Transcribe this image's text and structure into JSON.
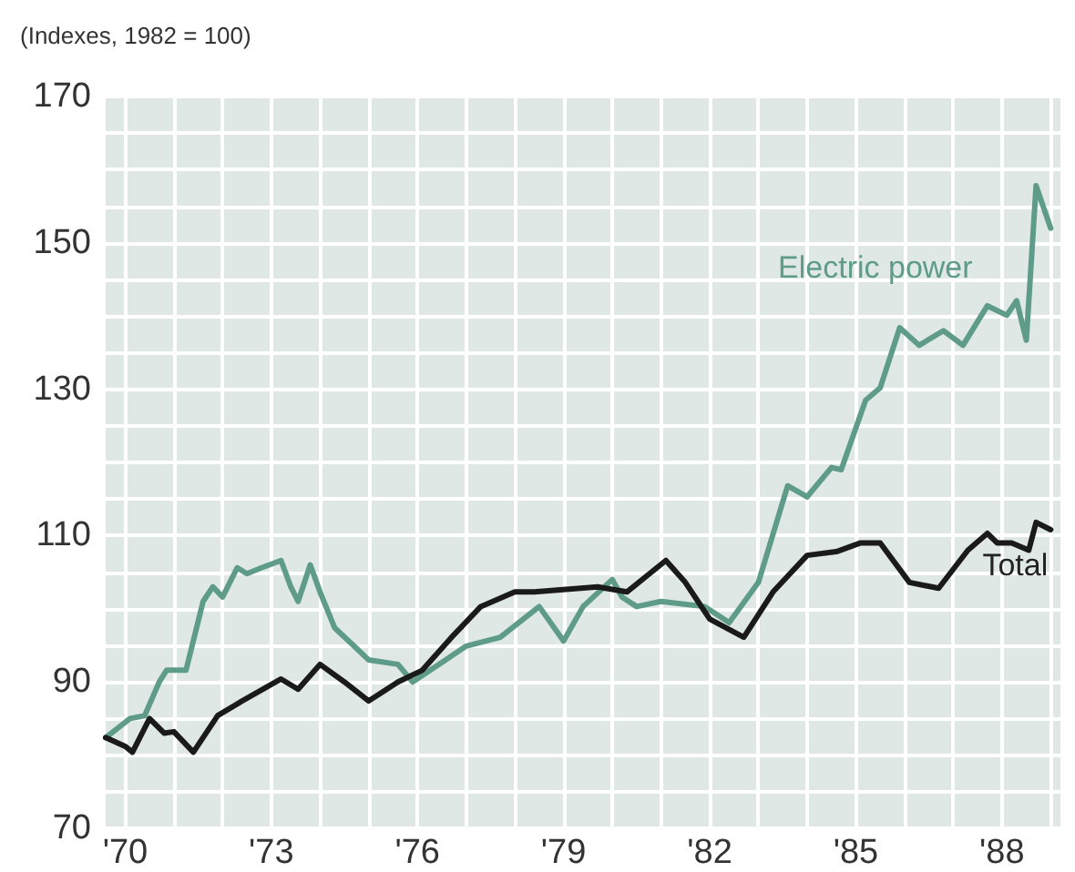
{
  "chart_data": {
    "type": "line",
    "title": "(Indexes, 1982 = 100)",
    "xlim": [
      1969.6,
      1989.2
    ],
    "xticks": [
      {
        "value": 1970,
        "label": "'70"
      },
      {
        "value": 1971,
        "label": null
      },
      {
        "value": 1972,
        "label": null
      },
      {
        "value": 1973,
        "label": "'73"
      },
      {
        "value": 1974,
        "label": null
      },
      {
        "value": 1975,
        "label": null
      },
      {
        "value": 1976,
        "label": "'76"
      },
      {
        "value": 1977,
        "label": null
      },
      {
        "value": 1978,
        "label": null
      },
      {
        "value": 1979,
        "label": "'79"
      },
      {
        "value": 1980,
        "label": null
      },
      {
        "value": 1981,
        "label": null
      },
      {
        "value": 1982,
        "label": "'82"
      },
      {
        "value": 1983,
        "label": null
      },
      {
        "value": 1984,
        "label": null
      },
      {
        "value": 1985,
        "label": "'85"
      },
      {
        "value": 1986,
        "label": null
      },
      {
        "value": 1987,
        "label": null
      },
      {
        "value": 1988,
        "label": "'88"
      },
      {
        "value": 1989,
        "label": null
      }
    ],
    "ylim": [
      70,
      170
    ],
    "yticks": [
      70,
      {
        "value": 75,
        "label": null
      },
      {
        "value": 80,
        "label": null
      },
      {
        "value": 85,
        "label": null
      },
      90,
      {
        "value": 95,
        "label": null
      },
      {
        "value": 100,
        "label": null
      },
      {
        "value": 105,
        "label": null
      },
      110,
      {
        "value": 115,
        "label": null
      },
      {
        "value": 120,
        "label": null
      },
      {
        "value": 125,
        "label": null
      },
      130,
      {
        "value": 135,
        "label": null
      },
      {
        "value": 140,
        "label": null
      },
      {
        "value": 145,
        "label": null
      },
      150,
      {
        "value": 155,
        "label": null
      },
      {
        "value": 160,
        "label": null
      },
      {
        "value": 165,
        "label": null
      },
      170
    ],
    "grid": true,
    "legend": false,
    "marker": "none",
    "line_style": "solid",
    "series": [
      {
        "name": "Electric power",
        "color": "#5e9c89",
        "x": [
          1969.6,
          1970.1,
          1970.4,
          1970.7,
          1970.85,
          1971.0,
          1971.25,
          1971.6,
          1971.8,
          1972.0,
          1972.3,
          1972.5,
          1972.8,
          1973.2,
          1973.4,
          1973.55,
          1973.8,
          1974.0,
          1974.3,
          1974.7,
          1975.0,
          1975.6,
          1975.9,
          1976.6,
          1977.0,
          1977.7,
          1978.5,
          1979.0,
          1979.4,
          1980.0,
          1980.2,
          1980.5,
          1981.0,
          1981.9,
          1982.4,
          1983.0,
          1983.6,
          1984.0,
          1984.5,
          1984.7,
          1985.2,
          1985.5,
          1985.9,
          1986.3,
          1986.8,
          1987.2,
          1987.7,
          1988.1,
          1988.3,
          1988.5,
          1988.7,
          1989.0
        ],
        "values": [
          82.4,
          85,
          85.4,
          90,
          91.6,
          91.6,
          91.6,
          101,
          103,
          101.6,
          105.6,
          104.8,
          105.6,
          106.6,
          103,
          101,
          106,
          102.3,
          97.4,
          94.9,
          93,
          92.4,
          90,
          93.1,
          94.9,
          96.1,
          100.3,
          95.6,
          100.3,
          104,
          101.6,
          100.3,
          101,
          100.3,
          98.1,
          103.6,
          116.8,
          115.3,
          119.3,
          119,
          128.5,
          130.2,
          138.4,
          136,
          138,
          136,
          141.4,
          140.1,
          142.1,
          136.7,
          157.8,
          152
        ]
      },
      {
        "name": "Total",
        "color": "#1a1a1a",
        "x": [
          1969.6,
          1970.0,
          1970.15,
          1970.5,
          1970.8,
          1971.0,
          1971.4,
          1971.9,
          1972.4,
          1973.2,
          1973.55,
          1974.0,
          1974.5,
          1975.0,
          1975.6,
          1976.1,
          1976.7,
          1977.3,
          1978.0,
          1978.4,
          1979.7,
          1980.3,
          1981.1,
          1981.5,
          1982.0,
          1982.7,
          1983.3,
          1984.0,
          1984.6,
          1985.1,
          1985.5,
          1986.1,
          1986.7,
          1987.3,
          1987.7,
          1987.9,
          1988.2,
          1988.55,
          1988.7,
          1989.0
        ],
        "values": [
          82.4,
          81.2,
          80.4,
          85,
          83,
          83.2,
          80.4,
          85.4,
          87.4,
          90.4,
          89,
          92.4,
          90,
          87.4,
          90,
          91.6,
          96.1,
          100.3,
          102.3,
          102.3,
          103,
          102.3,
          106.6,
          103.6,
          98.6,
          96.1,
          102.3,
          107.3,
          107.8,
          109,
          109,
          103.6,
          102.8,
          108,
          110.3,
          109,
          109,
          108,
          111.8,
          110.8
        ]
      }
    ]
  }
}
